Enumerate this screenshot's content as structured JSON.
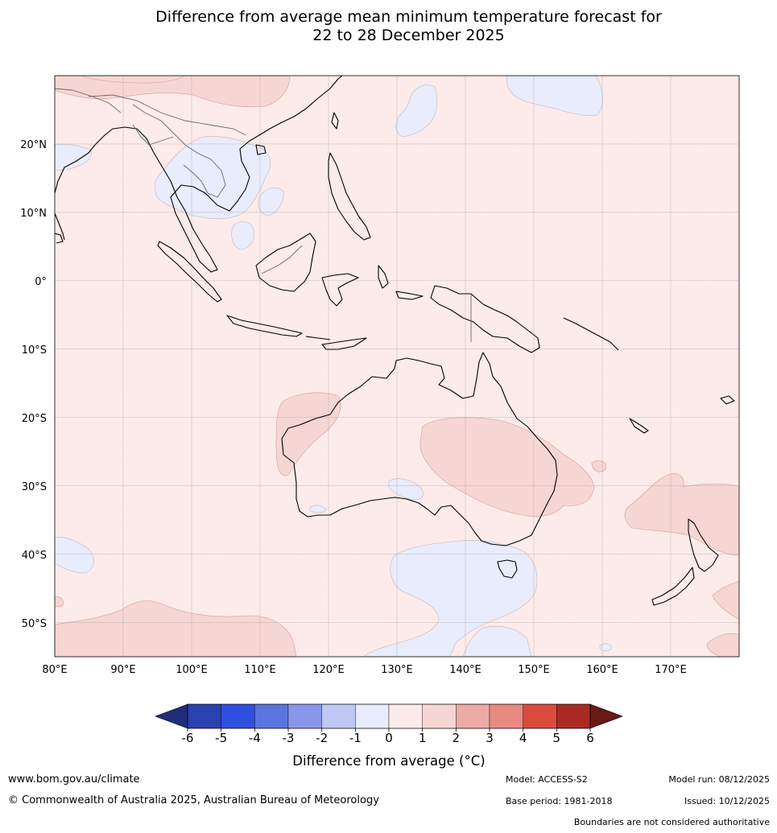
{
  "title": {
    "line1": "Difference from average mean minimum temperature forecast for",
    "line2": "22 to 28 December 2025"
  },
  "map": {
    "lat_labels": [
      "20°N",
      "10°N",
      "0°",
      "10°S",
      "20°S",
      "30°S",
      "40°S",
      "50°S"
    ],
    "lon_labels": [
      "80°E",
      "90°E",
      "100°E",
      "110°E",
      "120°E",
      "130°E",
      "140°E",
      "150°E",
      "160°E",
      "170°E"
    ],
    "extent": {
      "lon_min": 80,
      "lon_max": 180,
      "lat_min": -55,
      "lat_max": 30
    }
  },
  "colorbar": {
    "ticks": [
      "-6",
      "-5",
      "-4",
      "-3",
      "-2",
      "-1",
      "0",
      "1",
      "2",
      "3",
      "4",
      "5",
      "6"
    ],
    "colors": [
      "#1f2e7a",
      "#2a41b0",
      "#2f4fe0",
      "#5a74e0",
      "#8798ea",
      "#bfc7f4",
      "#e8ecfc",
      "#fcebea",
      "#f6d6d3",
      "#ecaaa5",
      "#e88a80",
      "#dc4a3e",
      "#aa2a22",
      "#6a1914"
    ],
    "label": "Difference from average (°C)"
  },
  "anomaly_field": {
    "background_class": "0 to 1",
    "background_color": "#fcebea",
    "warm_class_color": "#f6d6d3",
    "cool_class_color": "#e8ecfc"
  },
  "footer": {
    "website": "www.bom.gov.au/climate",
    "copyright": "© Commonwealth of Australia 2025, Australian Bureau of Meteorology",
    "model": "Model: ACCESS-S2",
    "base_period": "Base period: 1981-2018",
    "model_run": "Model run: 08/12/2025",
    "issued": "Issued: 10/12/2025",
    "disclaimer": "Boundaries are not considered authoritative"
  }
}
